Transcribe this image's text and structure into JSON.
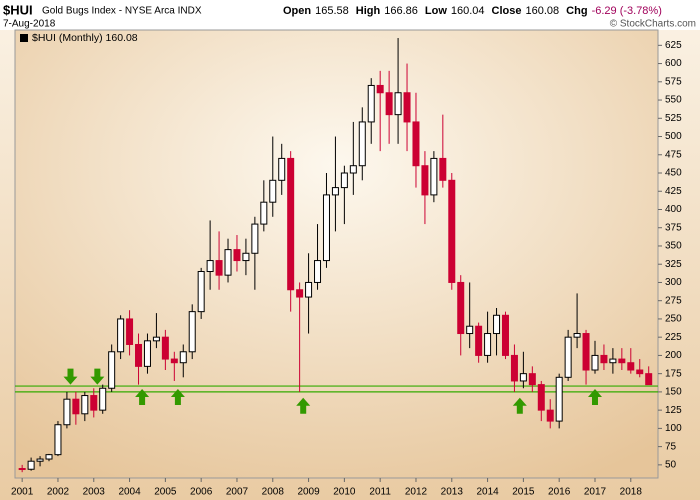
{
  "chart_data": {
    "type": "candlestick",
    "title": "$HUI",
    "subtitle": "Gold Bugs Index - NYSE Arca INDX",
    "date": "7-Aug-2018",
    "credit": "© StockCharts.com",
    "quote": [
      {
        "label": "Open",
        "value": "165.58"
      },
      {
        "label": "High",
        "value": "166.86"
      },
      {
        "label": "Low",
        "value": "160.04"
      },
      {
        "label": "Close",
        "value": "160.08"
      },
      {
        "label": "Chg",
        "value": "-6.29 (-3.78%)"
      }
    ],
    "x": [
      2001.0,
      2001.25,
      2001.5,
      2001.75,
      2002.0,
      2002.25,
      2002.5,
      2002.75,
      2003.0,
      2003.25,
      2003.5,
      2003.75,
      2004.0,
      2004.25,
      2004.5,
      2004.75,
      2005.0,
      2005.25,
      2005.5,
      2005.75,
      2006.0,
      2006.25,
      2006.5,
      2006.75,
      2007.0,
      2007.25,
      2007.5,
      2007.75,
      2008.0,
      2008.25,
      2008.5,
      2008.75,
      2009.0,
      2009.25,
      2009.5,
      2009.75,
      2010.0,
      2010.25,
      2010.5,
      2010.75,
      2011.0,
      2011.25,
      2011.5,
      2011.75,
      2012.0,
      2012.25,
      2012.5,
      2012.75,
      2013.0,
      2013.25,
      2013.5,
      2013.75,
      2014.0,
      2014.25,
      2014.5,
      2014.75,
      2015.0,
      2015.25,
      2015.5,
      2015.75,
      2016.0,
      2016.25,
      2016.5,
      2016.75,
      2017.0,
      2017.25,
      2017.5,
      2017.75,
      2018.0,
      2018.25,
      2018.5
    ],
    "series": [
      {
        "name": "$HUI (Monthly) 160.08",
        "up_color": "#000000",
        "down_color": "#cc0033",
        "open": [
          45,
          44,
          55,
          58,
          64,
          105,
          140,
          120,
          145,
          125,
          155,
          205,
          250,
          215,
          185,
          220,
          225,
          195,
          190,
          205,
          260,
          315,
          330,
          310,
          345,
          330,
          340,
          380,
          410,
          440,
          470,
          290,
          280,
          300,
          330,
          420,
          430,
          450,
          460,
          520,
          570,
          560,
          530,
          560,
          520,
          460,
          420,
          470,
          440,
          300,
          230,
          240,
          200,
          230,
          255,
          200,
          165,
          175,
          160,
          125,
          110,
          170,
          225,
          230,
          180,
          200,
          190,
          195,
          190,
          180,
          175
        ],
        "high": [
          50,
          60,
          62,
          65,
          110,
          150,
          150,
          150,
          155,
          160,
          215,
          255,
          262,
          230,
          230,
          258,
          235,
          205,
          215,
          270,
          320,
          385,
          370,
          360,
          365,
          360,
          390,
          440,
          500,
          490,
          480,
          300,
          340,
          380,
          450,
          500,
          460,
          520,
          540,
          580,
          590,
          590,
          635,
          600,
          560,
          480,
          480,
          530,
          450,
          310,
          300,
          245,
          260,
          265,
          260,
          215,
          205,
          185,
          165,
          140,
          175,
          235,
          285,
          235,
          220,
          215,
          210,
          210,
          210,
          195,
          185
        ],
        "low": [
          40,
          42,
          48,
          55,
          62,
          100,
          105,
          110,
          115,
          120,
          150,
          195,
          200,
          160,
          175,
          210,
          180,
          165,
          170,
          195,
          250,
          290,
          290,
          300,
          315,
          310,
          290,
          370,
          390,
          420,
          260,
          150,
          230,
          290,
          320,
          370,
          380,
          420,
          440,
          490,
          480,
          490,
          490,
          480,
          430,
          380,
          410,
          430,
          290,
          200,
          210,
          190,
          190,
          200,
          195,
          150,
          155,
          150,
          110,
          100,
          100,
          165,
          210,
          160,
          175,
          180,
          175,
          180,
          175,
          170,
          160
        ],
        "close": [
          44,
          55,
          58,
          64,
          105,
          140,
          120,
          145,
          125,
          155,
          205,
          250,
          215,
          185,
          220,
          225,
          195,
          190,
          205,
          260,
          315,
          330,
          310,
          345,
          330,
          340,
          380,
          410,
          440,
          470,
          290,
          280,
          300,
          330,
          420,
          430,
          450,
          460,
          520,
          570,
          560,
          530,
          560,
          520,
          460,
          420,
          470,
          440,
          300,
          230,
          240,
          200,
          230,
          255,
          200,
          165,
          175,
          160,
          125,
          110,
          170,
          225,
          230,
          180,
          200,
          190,
          195,
          190,
          180,
          175,
          160
        ]
      }
    ],
    "xlim": [
      2000.8,
      2018.76
    ],
    "xticks": [
      2001,
      2002,
      2003,
      2004,
      2005,
      2006,
      2007,
      2008,
      2009,
      2010,
      2011,
      2012,
      2013,
      2014,
      2015,
      2016,
      2017,
      2018
    ],
    "ylim": [
      32,
      646
    ],
    "yticks": [
      50,
      75,
      100,
      125,
      150,
      175,
      200,
      225,
      250,
      275,
      300,
      325,
      350,
      375,
      400,
      425,
      450,
      475,
      500,
      525,
      550,
      575,
      600,
      625
    ],
    "hlines": [
      {
        "y": 158,
        "color": "#33aa00"
      },
      {
        "y": 150,
        "color": "#33aa00"
      }
    ],
    "arrows": [
      {
        "x": 2002.35,
        "y": 160,
        "direction": "down",
        "color": "#339900"
      },
      {
        "x": 2003.1,
        "y": 160,
        "direction": "down",
        "color": "#339900"
      },
      {
        "x": 2004.35,
        "y": 154,
        "direction": "up",
        "color": "#339900"
      },
      {
        "x": 2005.35,
        "y": 154,
        "direction": "up",
        "color": "#339900"
      },
      {
        "x": 2008.85,
        "y": 142,
        "direction": "up",
        "color": "#339900"
      },
      {
        "x": 2014.9,
        "y": 142,
        "direction": "up",
        "color": "#339900"
      },
      {
        "x": 2017.0,
        "y": 154,
        "direction": "up",
        "color": "#339900"
      }
    ]
  }
}
